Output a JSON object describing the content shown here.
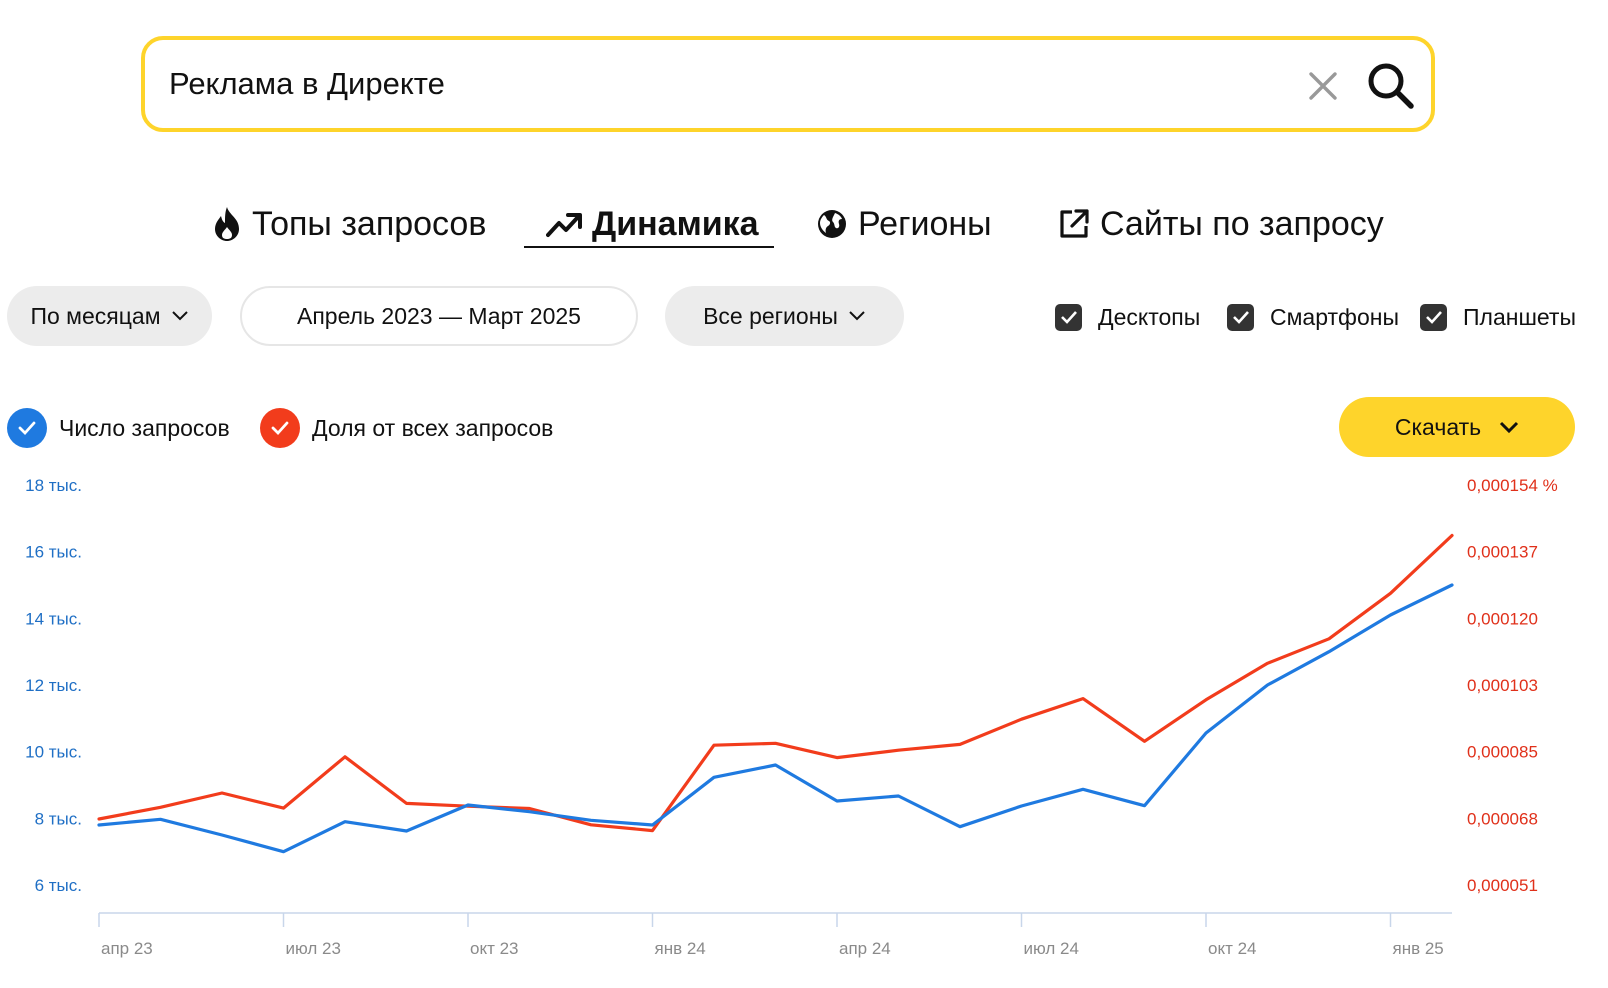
{
  "search": {
    "value": "Реклама в Директе"
  },
  "tabs": [
    {
      "label": "Топы запросов",
      "icon": "fire-icon"
    },
    {
      "label": "Динамика",
      "icon": "trend-up-icon"
    },
    {
      "label": "Регионы",
      "icon": "globe-icon"
    },
    {
      "label": "Сайты по запросу",
      "icon": "external-link-icon"
    }
  ],
  "filters": {
    "grouping": "По месяцам",
    "period": "Апрель 2023 — Март 2025",
    "region": "Все регионы",
    "devices": [
      "Десктопы",
      "Смартфоны",
      "Планшеты"
    ]
  },
  "legend": {
    "count_label": "Число запросов",
    "share_label": "Доля от всех запросов"
  },
  "download_label": "Скачать",
  "colors": {
    "count": "#1f7ae0",
    "share": "#f23c1c",
    "accent": "#fed42b"
  },
  "chart_data": {
    "type": "line",
    "x": [
      "апр 23",
      "май 23",
      "июн 23",
      "июл 23",
      "авг 23",
      "сен 23",
      "окт 23",
      "ноя 23",
      "дек 23",
      "янв 24",
      "фев 24",
      "мар 24",
      "апр 24",
      "май 24",
      "июн 24",
      "июл 24",
      "авг 24",
      "сен 24",
      "окт 24",
      "ноя 24",
      "дек 24",
      "янв 25",
      "фев 25"
    ],
    "x_tick_labels": [
      "апр 23",
      "июл 23",
      "окт 23",
      "янв 24",
      "апр 24",
      "июл 24",
      "окт 24",
      "янв 25"
    ],
    "series": [
      {
        "name": "Число запросов",
        "axis": "left",
        "values": [
          7800,
          7970,
          7500,
          7000,
          7900,
          7620,
          8400,
          8200,
          7940,
          7800,
          9230,
          9600,
          8520,
          8670,
          7750,
          8370,
          8870,
          8380,
          10560,
          12000,
          13000,
          14100,
          15000
        ]
      },
      {
        "name": "Доля от всех запросов",
        "axis": "right",
        "values": [
          6.8e-05,
          7.1e-05,
          7.47e-05,
          7.08e-05,
          8.4e-05,
          7.2e-05,
          7.13e-05,
          7.07e-05,
          6.65e-05,
          6.5e-05,
          8.7e-05,
          8.75e-05,
          8.38e-05,
          8.57e-05,
          8.72e-05,
          9.37e-05,
          9.9e-05,
          8.8e-05,
          9.87e-05,
          0.0001081,
          0.0001144,
          0.0001261,
          0.000141
        ]
      }
    ],
    "y_left": {
      "ticks": [
        "6 тыс.",
        "8 тыс.",
        "10 тыс.",
        "12 тыс.",
        "14 тыс.",
        "16 тыс.",
        "18 тыс."
      ],
      "range": [
        6000,
        18000
      ]
    },
    "y_right": {
      "ticks": [
        "0,000051",
        "0,000068",
        "0,000085",
        "0,000103",
        "0,000120",
        "0,000137",
        "0,000154 %"
      ],
      "range": [
        5.1e-05,
        0.000154
      ]
    }
  }
}
